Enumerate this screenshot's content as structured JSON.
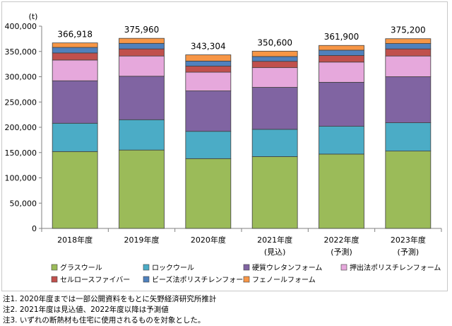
{
  "chart_data": {
    "type": "bar",
    "stacked": true,
    "title": "",
    "ylabel": "(t)",
    "xlabel": "",
    "ylim": [
      0,
      400000
    ],
    "yticks": [
      0,
      50000,
      100000,
      150000,
      200000,
      250000,
      300000,
      350000,
      400000
    ],
    "ytick_labels": [
      "0",
      "50,000",
      "100,000",
      "150,000",
      "200,000",
      "250,000",
      "300,000",
      "350,000",
      "400,000"
    ],
    "grid": false,
    "legend_position": "bottom",
    "categories": [
      "2018年度",
      "2019年度",
      "2020年度",
      "2021年度",
      "2022年度",
      "2023年度"
    ],
    "category_sublabels": [
      "",
      "",
      "",
      "(見込)",
      "(予測)",
      "(予測)"
    ],
    "totals": [
      366918,
      375960,
      343304,
      350600,
      361900,
      375200
    ],
    "total_labels": [
      "366,918",
      "375,960",
      "343,304",
      "350,600",
      "361,900",
      "375,200"
    ],
    "series": [
      {
        "name": "グラスウール",
        "color": "#9BBB59",
        "values": [
          152000,
          155000,
          138000,
          142000,
          147000,
          153000
        ]
      },
      {
        "name": "ロックウール",
        "color": "#4BACC6",
        "values": [
          56000,
          60000,
          54000,
          54000,
          55000,
          56000
        ]
      },
      {
        "name": "硬質ウレタンフォーム",
        "color": "#8064A2",
        "values": [
          84000,
          86000,
          80000,
          83000,
          87000,
          91000
        ]
      },
      {
        "name": "押出法ポリスチレンフォーム",
        "color": "#E6A8DC",
        "values": [
          41000,
          40000,
          37000,
          39000,
          40000,
          41000
        ]
      },
      {
        "name": "セルロースファイバー",
        "color": "#C0504D",
        "values": [
          14000,
          14000,
          12000,
          12500,
          13000,
          14000
        ]
      },
      {
        "name": "ビーズ法ポリスチレンフォーム",
        "color": "#4F81BD",
        "values": [
          11000,
          11000,
          10000,
          9500,
          10500,
          10700
        ]
      },
      {
        "name": "フェノールフォーム",
        "color": "#F79646",
        "values": [
          8918,
          9960,
          12304,
          10600,
          9400,
          9500
        ]
      }
    ]
  },
  "notes": [
    "注1. 2020年度までは一部公開資料をもとに矢野経済研究所推計",
    "注2. 2021年度は見込値、2022年度以降は予測値",
    "注3. いずれの断熱材も住宅に使用されるものを対象とした。"
  ]
}
